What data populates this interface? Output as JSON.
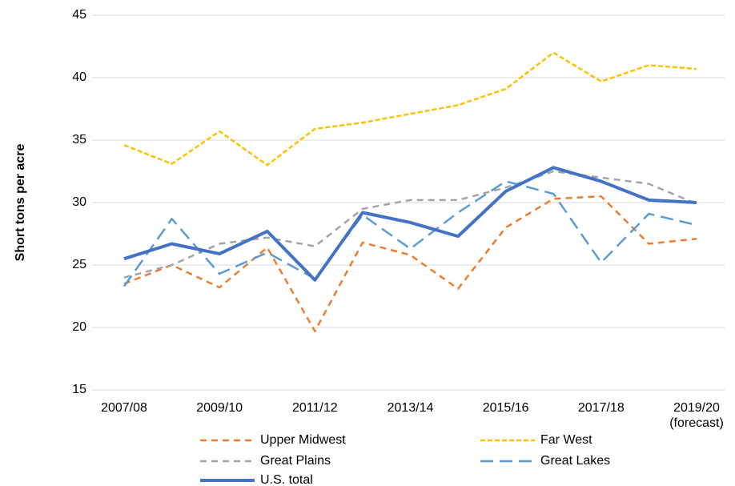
{
  "chart_data": {
    "type": "line",
    "y_label": "Short tons per acre",
    "categories": [
      "2007/08",
      null,
      "2009/10",
      null,
      "2011/12",
      null,
      "2013/14",
      null,
      "2015/16",
      null,
      "2017/18",
      null,
      "2019/20\n(forecast)"
    ],
    "ylim": [
      15,
      45
    ],
    "yticks": [
      15,
      20,
      25,
      30,
      35,
      40,
      45
    ],
    "grid": true,
    "series": [
      {
        "name": "Upper Midwest",
        "color": "#ed7d31",
        "values": [
          23.5,
          25.0,
          23.2,
          26.4,
          19.7,
          26.8,
          25.8,
          23.1,
          28.0,
          30.3,
          30.5,
          26.7,
          27.1
        ]
      },
      {
        "name": "Far West",
        "color": "#ffc000",
        "values": [
          34.6,
          33.1,
          35.7,
          33.0,
          35.9,
          36.4,
          37.1,
          37.8,
          39.1,
          42.0,
          39.7,
          41.0,
          40.7
        ]
      },
      {
        "name": "Great Plains",
        "color": "#a5a5a5",
        "values": [
          24.0,
          25.0,
          26.7,
          27.2,
          26.5,
          29.5,
          30.2,
          30.2,
          31.2,
          32.5,
          32.0,
          31.5,
          29.9
        ]
      },
      {
        "name": "Great Lakes",
        "color": "#5b9bd5",
        "values": [
          23.3,
          28.7,
          24.3,
          26.0,
          23.9,
          29.0,
          26.3,
          29.2,
          31.7,
          30.7,
          25.2,
          29.1,
          28.2
        ]
      },
      {
        "name": "U.S. total",
        "color": "#4472c4",
        "values": [
          25.5,
          26.7,
          25.9,
          27.7,
          23.8,
          29.2,
          28.4,
          27.3,
          30.9,
          32.8,
          31.7,
          30.2,
          30.0
        ]
      }
    ]
  }
}
